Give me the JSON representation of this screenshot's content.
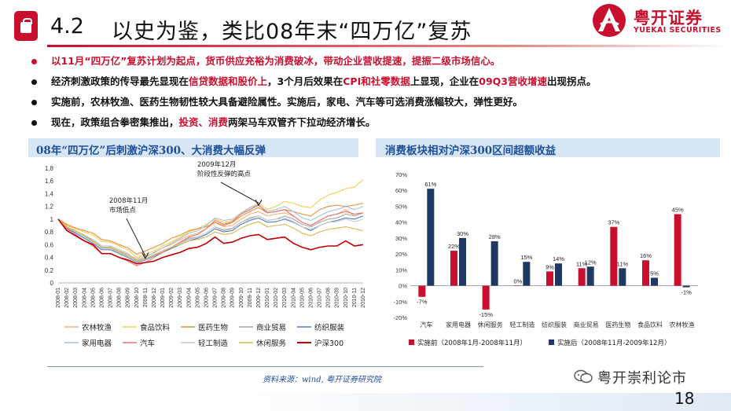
{
  "header": {
    "section_number": "4.2",
    "title": "以史为鉴，类比08年末“四万亿”复苏",
    "logo_cn": "粤开证券",
    "logo_en": "YUEKAI SECURITIES",
    "icon": "shopping-bag-icon"
  },
  "bullets": [
    {
      "segments": [
        {
          "text": "以11月“四万亿”复苏计划为起点，货币供应充裕为消费破冰，带动企业营收提速，提振二级市场信心。",
          "red": true
        }
      ],
      "dot_color": "#c8102e"
    },
    {
      "segments": [
        {
          "text": "经济刺激政策的传导最先显现在",
          "red": false
        },
        {
          "text": "信贷数据和股价上",
          "red": true
        },
        {
          "text": "，3个月后效果在",
          "red": false
        },
        {
          "text": "CPI和社零数据",
          "red": true
        },
        {
          "text": "上显现，企业在",
          "red": false
        },
        {
          "text": "09Q3营收增速",
          "red": true
        },
        {
          "text": "出现拐点。",
          "red": false
        }
      ],
      "dot_color": "#111111"
    },
    {
      "segments": [
        {
          "text": "实施前，农林牧渔、医药生物韧性较大具备避险属性。实施后，家电、汽车等可选消费涨幅较大，弹性更好。",
          "red": false
        }
      ],
      "dot_color": "#111111"
    },
    {
      "segments": [
        {
          "text": "现在，政策组合拳密集推出，",
          "red": false
        },
        {
          "text": "投资、消费",
          "red": true
        },
        {
          "text": "两架马车双管齐下拉动经济增长。",
          "red": false
        }
      ],
      "dot_color": "#111111"
    }
  ],
  "left_panel_title": "08年“四万亿”后刺激沪深300、大消费大幅反弹",
  "right_panel_title": "消费板块相对沪深300区间超额收益",
  "source": "资料来源：wind, 粤开证券研究院",
  "page_number": "18",
  "watermark": "粤开崇利论市",
  "watermark_icon": "wechat-icon",
  "colors": {
    "brand_red": "#c8102e",
    "panel_blue": "#1f4e96",
    "band_bg": "#d6e6f5"
  },
  "chart_data": [
    {
      "type": "line",
      "title": "08年“四万亿”后刺激沪深300、大消费大幅反弹",
      "x": [
        "2008-01",
        "2008-02",
        "2008-03",
        "2008-04",
        "2008-05",
        "2008-06",
        "2008-07",
        "2008-08",
        "2008-09",
        "2008-10",
        "2008-11",
        "2008-12",
        "2009-01",
        "2009-02",
        "2009-03",
        "2009-04",
        "2009-05",
        "2009-06",
        "2009-07",
        "2009-08",
        "2009-09",
        "2009-10",
        "2009-11",
        "2009-12",
        "2010-01",
        "2010-02",
        "2010-03",
        "2010-04",
        "2010-05",
        "2010-06",
        "2010-07",
        "2010-08",
        "2010-09",
        "2010-10",
        "2010-11",
        "2010-12"
      ],
      "ylim": [
        0,
        1.8
      ],
      "yticks": [
        "0",
        "0.2",
        "0.4",
        "0.6",
        "0.8",
        "1",
        "1.2",
        "1.4",
        "1.6",
        "1.8"
      ],
      "annotations": [
        {
          "text_lines": [
            "2008年11月",
            "市场低点"
          ],
          "at_x": "2008-11",
          "y": 0.35
        },
        {
          "text_lines": [
            "2009年12月",
            "阶段性反弹的高点"
          ],
          "at_x": "2009-12",
          "y": 1.18
        }
      ],
      "legend_position": "bottom",
      "series": [
        {
          "name": "农林牧渔",
          "color": "#f2b27a",
          "values": [
            1.0,
            0.85,
            0.8,
            0.72,
            0.66,
            0.55,
            0.56,
            0.5,
            0.45,
            0.38,
            0.42,
            0.47,
            0.55,
            0.6,
            0.68,
            0.74,
            0.78,
            0.85,
            0.95,
            0.88,
            0.9,
            1.0,
            1.08,
            1.12,
            1.05,
            1.08,
            1.1,
            1.05,
            0.95,
            0.9,
            0.98,
            1.05,
            1.08,
            1.15,
            1.05,
            1.1
          ]
        },
        {
          "name": "食品饮料",
          "color": "#f2d04a",
          "values": [
            1.0,
            0.9,
            0.85,
            0.8,
            0.75,
            0.65,
            0.64,
            0.58,
            0.52,
            0.4,
            0.45,
            0.5,
            0.58,
            0.64,
            0.72,
            0.8,
            0.85,
            0.92,
            1.0,
            0.95,
            0.98,
            1.08,
            1.18,
            1.25,
            1.15,
            1.2,
            1.28,
            1.25,
            1.2,
            1.18,
            1.3,
            1.38,
            1.42,
            1.48,
            1.5,
            1.62
          ]
        },
        {
          "name": "医药生物",
          "color": "#f08a3a",
          "values": [
            1.0,
            0.92,
            0.86,
            0.82,
            0.78,
            0.68,
            0.66,
            0.6,
            0.55,
            0.45,
            0.5,
            0.56,
            0.62,
            0.7,
            0.75,
            0.82,
            0.85,
            0.88,
            0.95,
            0.9,
            0.95,
            1.05,
            1.12,
            1.18,
            1.1,
            1.12,
            1.15,
            1.12,
            1.08,
            1.05,
            1.15,
            1.2,
            1.22,
            1.2,
            1.22,
            1.25
          ]
        },
        {
          "name": "商业贸易",
          "color": "#a9a9a9",
          "values": [
            1.0,
            0.88,
            0.8,
            0.72,
            0.65,
            0.55,
            0.55,
            0.48,
            0.42,
            0.34,
            0.38,
            0.44,
            0.5,
            0.56,
            0.62,
            0.7,
            0.72,
            0.78,
            0.88,
            0.82,
            0.85,
            0.95,
            1.02,
            1.05,
            0.98,
            1.0,
            1.05,
            1.0,
            0.92,
            0.88,
            0.95,
            1.0,
            1.02,
            1.08,
            1.05,
            1.1
          ]
        },
        {
          "name": "纺织服装",
          "color": "#4f7ec2",
          "values": [
            1.0,
            0.86,
            0.78,
            0.7,
            0.62,
            0.52,
            0.52,
            0.46,
            0.4,
            0.32,
            0.36,
            0.42,
            0.48,
            0.54,
            0.6,
            0.66,
            0.7,
            0.76,
            0.85,
            0.8,
            0.82,
            0.92,
            0.98,
            1.02,
            0.95,
            0.96,
            1.0,
            0.95,
            0.88,
            0.82,
            0.9,
            0.95,
            0.98,
            1.02,
            1.0,
            1.05
          ]
        },
        {
          "name": "家用电器",
          "color": "#9dc3e6",
          "values": [
            1.0,
            0.88,
            0.82,
            0.75,
            0.68,
            0.58,
            0.58,
            0.52,
            0.46,
            0.36,
            0.4,
            0.48,
            0.55,
            0.62,
            0.7,
            0.78,
            0.82,
            0.9,
            1.02,
            0.98,
            1.0,
            1.1,
            1.18,
            1.22,
            1.12,
            1.15,
            1.2,
            1.12,
            1.02,
            0.98,
            1.05,
            1.12,
            1.15,
            1.2,
            1.15,
            1.2
          ]
        },
        {
          "name": "汽车",
          "color": "#e57373",
          "values": [
            1.0,
            0.85,
            0.76,
            0.66,
            0.58,
            0.46,
            0.46,
            0.4,
            0.34,
            0.27,
            0.32,
            0.4,
            0.48,
            0.56,
            0.64,
            0.72,
            0.76,
            0.85,
            0.98,
            0.92,
            0.96,
            1.08,
            1.15,
            1.22,
            1.1,
            1.12,
            1.15,
            1.05,
            0.95,
            0.9,
            0.98,
            1.05,
            1.08,
            1.12,
            1.08,
            1.1
          ]
        },
        {
          "name": "轻工制造",
          "color": "#c8c8c8",
          "values": [
            1.0,
            0.87,
            0.8,
            0.72,
            0.64,
            0.54,
            0.54,
            0.47,
            0.41,
            0.33,
            0.37,
            0.43,
            0.5,
            0.56,
            0.62,
            0.68,
            0.72,
            0.78,
            0.88,
            0.84,
            0.86,
            0.95,
            1.0,
            1.05,
            0.98,
            1.0,
            1.02,
            0.96,
            0.88,
            0.84,
            0.9,
            0.95,
            0.96,
            1.0,
            0.96,
            1.0
          ]
        },
        {
          "name": "休闲服务",
          "color": "#d8b74a",
          "values": [
            1.0,
            0.88,
            0.82,
            0.74,
            0.66,
            0.56,
            0.56,
            0.49,
            0.43,
            0.35,
            0.38,
            0.44,
            0.5,
            0.56,
            0.6,
            0.66,
            0.68,
            0.72,
            0.8,
            0.76,
            0.78,
            0.86,
            0.92,
            0.96,
            0.88,
            0.9,
            0.92,
            0.86,
            0.78,
            0.74,
            0.8,
            0.84,
            0.86,
            0.88,
            0.85,
            0.82
          ]
        },
        {
          "name": "沪深300",
          "color": "#c00000",
          "values": [
            1.0,
            0.82,
            0.74,
            0.66,
            0.6,
            0.46,
            0.46,
            0.4,
            0.36,
            0.3,
            0.32,
            0.34,
            0.4,
            0.44,
            0.48,
            0.54,
            0.56,
            0.62,
            0.72,
            0.62,
            0.64,
            0.7,
            0.74,
            0.76,
            0.68,
            0.7,
            0.72,
            0.62,
            0.56,
            0.52,
            0.56,
            0.58,
            0.58,
            0.66,
            0.58,
            0.6
          ]
        }
      ]
    },
    {
      "type": "bar",
      "title": "消费板块相对沪深300区间超额收益",
      "categories": [
        "汽车",
        "家用电器",
        "休闲服务",
        "轻工制造",
        "纺织服装",
        "商业贸易",
        "医药生物",
        "食品饮料",
        "农林牧渔"
      ],
      "ylim": [
        -20,
        70
      ],
      "yticks": [
        "-20%",
        "-10%",
        "0%",
        "10%",
        "20%",
        "30%",
        "40%",
        "50%",
        "60%",
        "70%"
      ],
      "legend_position": "bottom",
      "series": [
        {
          "name": "实施前（2008年1月-2008年11月）",
          "color": "#c8102e",
          "values": [
            -7,
            22,
            -15,
            0,
            9,
            11,
            37,
            16,
            45
          ]
        },
        {
          "name": "实施后（2008年11月-2009年12月）",
          "color": "#1f3864",
          "values": [
            61,
            30,
            28,
            15,
            14,
            12,
            11,
            5,
            -1
          ]
        }
      ]
    }
  ]
}
